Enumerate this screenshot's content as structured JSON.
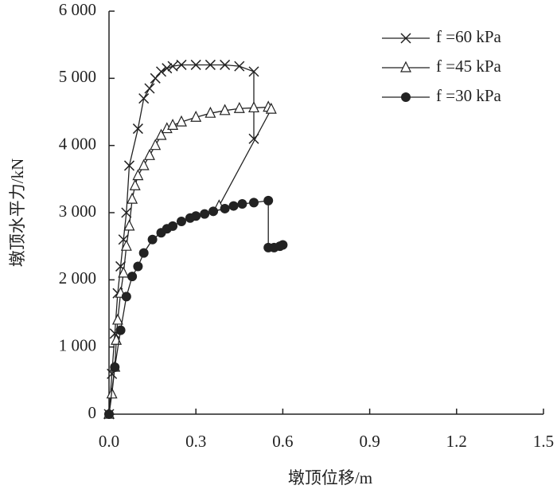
{
  "chart_data": {
    "type": "line",
    "x_label": "墩顶位移/m",
    "y_label": "墩顶水平力/kN",
    "xlim": [
      0,
      1.5
    ],
    "ylim": [
      0,
      6000
    ],
    "xticks": [
      {
        "value": 0,
        "label": "0.0"
      },
      0.3,
      0.6,
      0.9,
      1.2,
      1.5
    ],
    "yticks": [
      0,
      {
        "value": 1000,
        "label": "1 000"
      },
      {
        "value": 2000,
        "label": "2 000"
      },
      {
        "value": 3000,
        "label": "3 000"
      },
      {
        "value": 4000,
        "label": "4 000"
      },
      {
        "value": 5000,
        "label": "5 000"
      },
      {
        "value": 6000,
        "label": "6 000"
      }
    ],
    "legend": "upper right",
    "series": [
      {
        "name": "f =60 kPa",
        "color": "#222222",
        "marker": "x",
        "x": [
          0,
          0.01,
          0.02,
          0.03,
          0.04,
          0.05,
          0.06,
          0.07,
          0.1,
          0.12,
          0.14,
          0.16,
          0.18,
          0.2,
          0.22,
          0.25,
          0.3,
          0.35,
          0.4,
          0.45,
          0.5,
          0.5
        ],
        "values": [
          0,
          600,
          1200,
          1800,
          2200,
          2600,
          3000,
          3700,
          4250,
          4700,
          4850,
          5000,
          5100,
          5150,
          5180,
          5200,
          5200,
          5200,
          5200,
          5180,
          5100,
          4100
        ]
      },
      {
        "name": "f =45 kPa",
        "color": "#222222",
        "marker": "triangle",
        "x": [
          0,
          0.01,
          0.02,
          0.025,
          0.03,
          0.04,
          0.05,
          0.06,
          0.07,
          0.08,
          0.09,
          0.1,
          0.12,
          0.14,
          0.16,
          0.18,
          0.2,
          0.22,
          0.25,
          0.3,
          0.35,
          0.4,
          0.45,
          0.5,
          0.55,
          0.56,
          0.38
        ],
        "values": [
          0,
          300,
          700,
          1100,
          1400,
          1800,
          2100,
          2500,
          2800,
          3200,
          3400,
          3550,
          3700,
          3850,
          4000,
          4150,
          4250,
          4300,
          4350,
          4420,
          4480,
          4520,
          4550,
          4560,
          4570,
          4540,
          3100
        ]
      },
      {
        "name": "f =30 kPa",
        "color": "#222222",
        "marker": "circle",
        "x": [
          0,
          0.02,
          0.04,
          0.06,
          0.08,
          0.1,
          0.12,
          0.15,
          0.18,
          0.2,
          0.22,
          0.25,
          0.28,
          0.3,
          0.33,
          0.36,
          0.4,
          0.43,
          0.46,
          0.5,
          0.55,
          0.55,
          0.57,
          0.59,
          0.6
        ],
        "values": [
          0,
          700,
          1250,
          1750,
          2050,
          2200,
          2400,
          2600,
          2700,
          2760,
          2800,
          2870,
          2920,
          2950,
          2980,
          3020,
          3060,
          3100,
          3130,
          3150,
          3180,
          2480,
          2480,
          2500,
          2520
        ]
      }
    ]
  }
}
